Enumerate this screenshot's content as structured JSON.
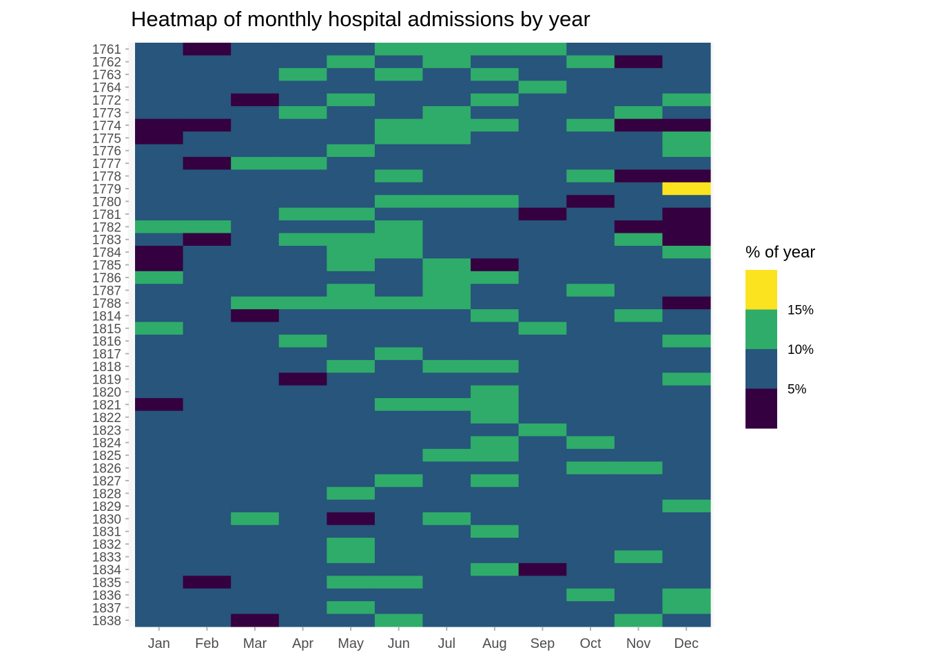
{
  "chart_data": {
    "type": "heatmap",
    "title": "Heatmap of monthly hospital admissions by year",
    "xlabel": "",
    "ylabel": "",
    "grid": false,
    "x_categories": [
      "Jan",
      "Feb",
      "Mar",
      "Apr",
      "May",
      "Jun",
      "Jul",
      "Aug",
      "Sep",
      "Oct",
      "Nov",
      "Dec"
    ],
    "y_categories": [
      "1761",
      "1762",
      "1763",
      "1764",
      "1772",
      "1773",
      "1774",
      "1775",
      "1776",
      "1777",
      "1778",
      "1779",
      "1780",
      "1781",
      "1782",
      "1783",
      "1784",
      "1785",
      "1786",
      "1787",
      "1788",
      "1814",
      "1815",
      "1816",
      "1817",
      "1818",
      "1819",
      "1820",
      "1821",
      "1822",
      "1823",
      "1824",
      "1825",
      "1826",
      "1827",
      "1828",
      "1829",
      "1830",
      "1831",
      "1832",
      "1833",
      "1834",
      "1835",
      "1836",
      "1837",
      "1838"
    ],
    "value_description": "binned % of year: 0 = <5%, 1 = 5-10%, 2 = 10-15%, 3 = >15%",
    "bins": [
      {
        "label": "<5%",
        "color": "#350040"
      },
      {
        "label": "5-10%",
        "color": "#27557b"
      },
      {
        "label": "10-15%",
        "color": "#2fac69"
      },
      {
        "label": ">15%",
        "color": "#fbe31f"
      }
    ],
    "values": [
      [
        1,
        0,
        1,
        1,
        1,
        2,
        2,
        2,
        2,
        1,
        1,
        1
      ],
      [
        1,
        1,
        1,
        1,
        2,
        1,
        2,
        1,
        1,
        2,
        0,
        1
      ],
      [
        1,
        1,
        1,
        2,
        1,
        2,
        1,
        2,
        1,
        1,
        1,
        1
      ],
      [
        1,
        1,
        1,
        1,
        1,
        1,
        1,
        1,
        2,
        1,
        1,
        1
      ],
      [
        1,
        1,
        0,
        1,
        2,
        1,
        1,
        2,
        1,
        1,
        1,
        2
      ],
      [
        1,
        1,
        1,
        2,
        1,
        1,
        2,
        1,
        1,
        1,
        2,
        1
      ],
      [
        0,
        0,
        1,
        1,
        1,
        2,
        2,
        2,
        1,
        2,
        0,
        0
      ],
      [
        0,
        1,
        1,
        1,
        1,
        2,
        2,
        1,
        1,
        1,
        1,
        2
      ],
      [
        1,
        1,
        1,
        1,
        2,
        1,
        1,
        1,
        1,
        1,
        1,
        2
      ],
      [
        1,
        0,
        2,
        2,
        1,
        1,
        1,
        1,
        1,
        1,
        1,
        1
      ],
      [
        1,
        1,
        1,
        1,
        1,
        2,
        1,
        1,
        1,
        2,
        0,
        0
      ],
      [
        1,
        1,
        1,
        1,
        1,
        1,
        1,
        1,
        1,
        1,
        1,
        3
      ],
      [
        1,
        1,
        1,
        1,
        1,
        2,
        2,
        2,
        1,
        0,
        1,
        1
      ],
      [
        1,
        1,
        1,
        2,
        2,
        1,
        1,
        1,
        0,
        1,
        1,
        0
      ],
      [
        2,
        2,
        1,
        1,
        1,
        2,
        1,
        1,
        1,
        1,
        0,
        0
      ],
      [
        1,
        0,
        1,
        2,
        2,
        2,
        1,
        1,
        1,
        1,
        2,
        0
      ],
      [
        0,
        1,
        1,
        1,
        2,
        2,
        1,
        1,
        1,
        1,
        1,
        2
      ],
      [
        0,
        1,
        1,
        1,
        2,
        1,
        2,
        0,
        1,
        1,
        1,
        1
      ],
      [
        2,
        1,
        1,
        1,
        1,
        1,
        2,
        2,
        1,
        1,
        1,
        1
      ],
      [
        1,
        1,
        1,
        1,
        2,
        1,
        2,
        1,
        1,
        2,
        1,
        1
      ],
      [
        1,
        1,
        2,
        2,
        2,
        2,
        2,
        1,
        1,
        1,
        1,
        0
      ],
      [
        1,
        1,
        0,
        1,
        1,
        1,
        1,
        2,
        1,
        1,
        2,
        1
      ],
      [
        2,
        1,
        1,
        1,
        1,
        1,
        1,
        1,
        2,
        1,
        1,
        1
      ],
      [
        1,
        1,
        1,
        2,
        1,
        1,
        1,
        1,
        1,
        1,
        1,
        2
      ],
      [
        1,
        1,
        1,
        1,
        1,
        2,
        1,
        1,
        1,
        1,
        1,
        1
      ],
      [
        1,
        1,
        1,
        1,
        2,
        1,
        2,
        2,
        1,
        1,
        1,
        1
      ],
      [
        1,
        1,
        1,
        0,
        1,
        1,
        1,
        1,
        1,
        1,
        1,
        2
      ],
      [
        1,
        1,
        1,
        1,
        1,
        1,
        1,
        2,
        1,
        1,
        1,
        1
      ],
      [
        0,
        1,
        1,
        1,
        1,
        2,
        2,
        2,
        1,
        1,
        1,
        1
      ],
      [
        1,
        1,
        1,
        1,
        1,
        1,
        1,
        2,
        1,
        1,
        1,
        1
      ],
      [
        1,
        1,
        1,
        1,
        1,
        1,
        1,
        1,
        2,
        1,
        1,
        1
      ],
      [
        1,
        1,
        1,
        1,
        1,
        1,
        1,
        2,
        1,
        2,
        1,
        1
      ],
      [
        1,
        1,
        1,
        1,
        1,
        1,
        2,
        2,
        1,
        1,
        1,
        1
      ],
      [
        1,
        1,
        1,
        1,
        1,
        1,
        1,
        1,
        1,
        2,
        2,
        1
      ],
      [
        1,
        1,
        1,
        1,
        1,
        2,
        1,
        2,
        1,
        1,
        1,
        1
      ],
      [
        1,
        1,
        1,
        1,
        2,
        1,
        1,
        1,
        1,
        1,
        1,
        1
      ],
      [
        1,
        1,
        1,
        1,
        1,
        1,
        1,
        1,
        1,
        1,
        1,
        2
      ],
      [
        1,
        1,
        2,
        1,
        0,
        1,
        2,
        1,
        1,
        1,
        1,
        1
      ],
      [
        1,
        1,
        1,
        1,
        1,
        1,
        1,
        2,
        1,
        1,
        1,
        1
      ],
      [
        1,
        1,
        1,
        1,
        2,
        1,
        1,
        1,
        1,
        1,
        1,
        1
      ],
      [
        1,
        1,
        1,
        1,
        2,
        1,
        1,
        1,
        1,
        1,
        2,
        1
      ],
      [
        1,
        1,
        1,
        1,
        1,
        1,
        1,
        2,
        0,
        1,
        1,
        1
      ],
      [
        1,
        0,
        1,
        1,
        2,
        2,
        1,
        1,
        1,
        1,
        1,
        1
      ],
      [
        1,
        1,
        1,
        1,
        1,
        1,
        1,
        1,
        1,
        2,
        1,
        2
      ],
      [
        1,
        1,
        1,
        1,
        2,
        1,
        1,
        1,
        1,
        1,
        1,
        2
      ],
      [
        1,
        1,
        0,
        1,
        1,
        2,
        1,
        1,
        1,
        1,
        2,
        1
      ]
    ],
    "legend": {
      "title": "% of year",
      "position": "right",
      "breaks": [
        "15%",
        "10%",
        "5%"
      ]
    }
  }
}
